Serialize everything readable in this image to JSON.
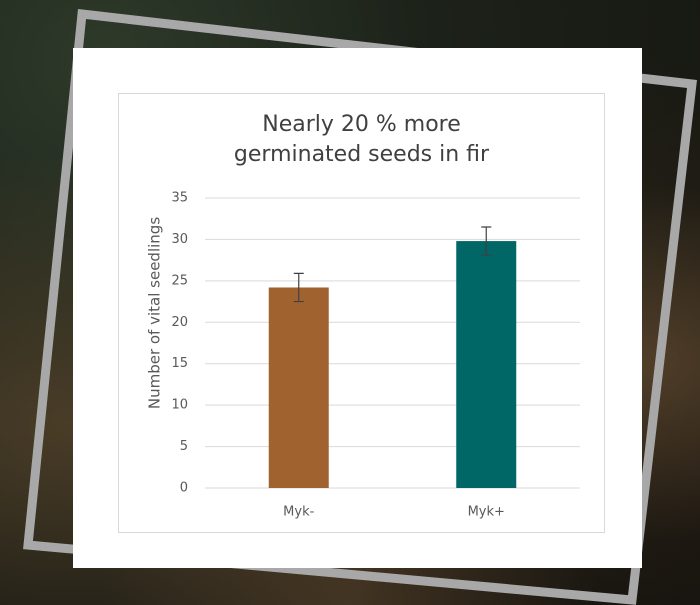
{
  "chart_data": {
    "type": "bar",
    "title": "Nearly 20 % more germinated seeds in fir",
    "y_label": "Number of vital seedlings",
    "categories": [
      "Myk-",
      "Myk+"
    ],
    "values": [
      24.2,
      29.8
    ],
    "errors": [
      1.7,
      1.7
    ],
    "colors": [
      "#a0632f",
      "#006666"
    ],
    "ylim": [
      0,
      35
    ],
    "yticks": [
      0,
      5,
      10,
      15,
      20,
      25,
      30,
      35
    ],
    "grid": true
  }
}
